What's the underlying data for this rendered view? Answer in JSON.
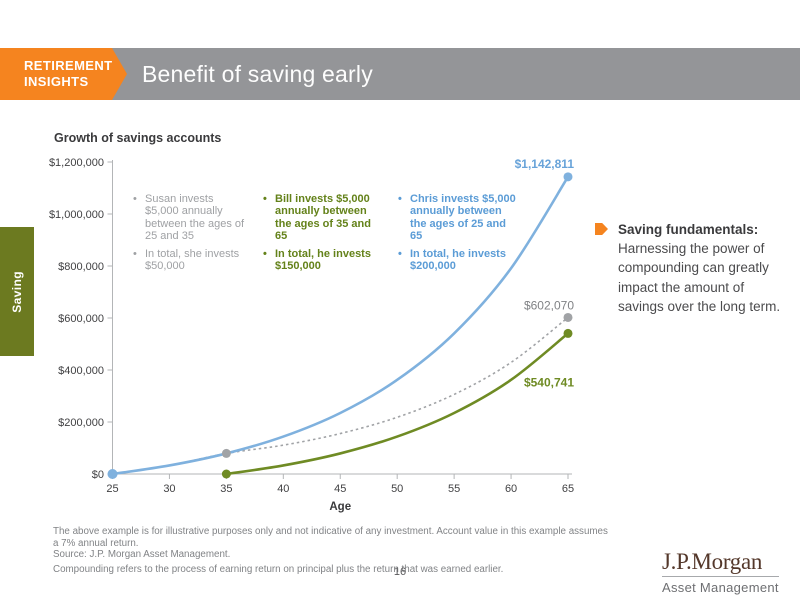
{
  "header": {
    "badge_line1": "RETIREMENT",
    "badge_line2": "INSIGHTS",
    "title": "Benefit of saving early"
  },
  "side_tab": {
    "label": "Saving"
  },
  "chart_data": {
    "type": "line",
    "title": "Growth of savings accounts",
    "xlabel": "Age",
    "ylabel": "",
    "x": [
      25,
      30,
      35,
      40,
      45,
      50,
      55,
      60,
      65
    ],
    "xlim": [
      25,
      65
    ],
    "ylim": [
      0,
      1200000
    ],
    "grid": false,
    "legend_position": "in-plot text blocks",
    "y_ticks": [
      "$0",
      "$200,000",
      "$400,000",
      "$600,000",
      "$800,000",
      "$1,000,000",
      "$1,200,000"
    ],
    "assumed_annual_return": "7%",
    "series": [
      {
        "name": "Susan",
        "style": "dotted",
        "color": "#a1a3a6",
        "values": [
          0,
          32900,
          79100,
          110900,
          155600,
          218200,
          306100,
          429200,
          602070
        ],
        "end_label": "$602,070",
        "markers": [
          35,
          65
        ]
      },
      {
        "name": "Bill",
        "style": "solid",
        "color": "#6f8b24",
        "values": [
          null,
          null,
          0,
          32900,
          79100,
          143900,
          234700,
          362100,
          540741
        ],
        "end_label": "$540,741",
        "markers": [
          35,
          65
        ]
      },
      {
        "name": "Chris",
        "style": "solid",
        "color": "#7fb1de",
        "values": [
          0,
          32900,
          79100,
          143900,
          234700,
          362100,
          540700,
          791300,
          1142811
        ],
        "end_label": "$1,142,811",
        "markers": [
          25,
          65
        ]
      }
    ]
  },
  "legend": [
    {
      "name": "Susan",
      "color": "#9fa1a4",
      "items": [
        "Susan invests $5,000 annually between the ages of 25 and 35",
        "In total, she invests $50,000"
      ]
    },
    {
      "name": "Bill",
      "color": "#64821a",
      "items": [
        "Bill invests $5,000 annually between the ages of 35 and 65",
        "In total, he invests $150,000"
      ]
    },
    {
      "name": "Chris",
      "color": "#5b9cd6",
      "items": [
        "Chris invests $5,000 annually between the ages of 25 and 65",
        "In total, he invests $200,000"
      ]
    }
  ],
  "callout": {
    "heading": "Saving fundamentals:",
    "body": "Harnessing the power of compounding can greatly impact the amount of savings over the long term."
  },
  "footnotes": {
    "line1": "The above example is for illustrative purposes only and not indicative of any investment. Account value in this example assumes a 7% annual return.",
    "line2": "Source: J.P. Morgan Asset Management.",
    "line3": "Compounding refers to the process of earning return on principal plus the return that was earned earlier."
  },
  "footer": {
    "page_number": "16",
    "logo_name": "J.P.Morgan",
    "logo_sub": "Asset Management"
  },
  "colors": {
    "accent_orange": "#f5841f",
    "header_gray": "#949598",
    "olive_tab": "#6c7a20",
    "series_blue": "#7fb1de",
    "series_green": "#6f8b24",
    "series_gray": "#a1a3a6"
  }
}
